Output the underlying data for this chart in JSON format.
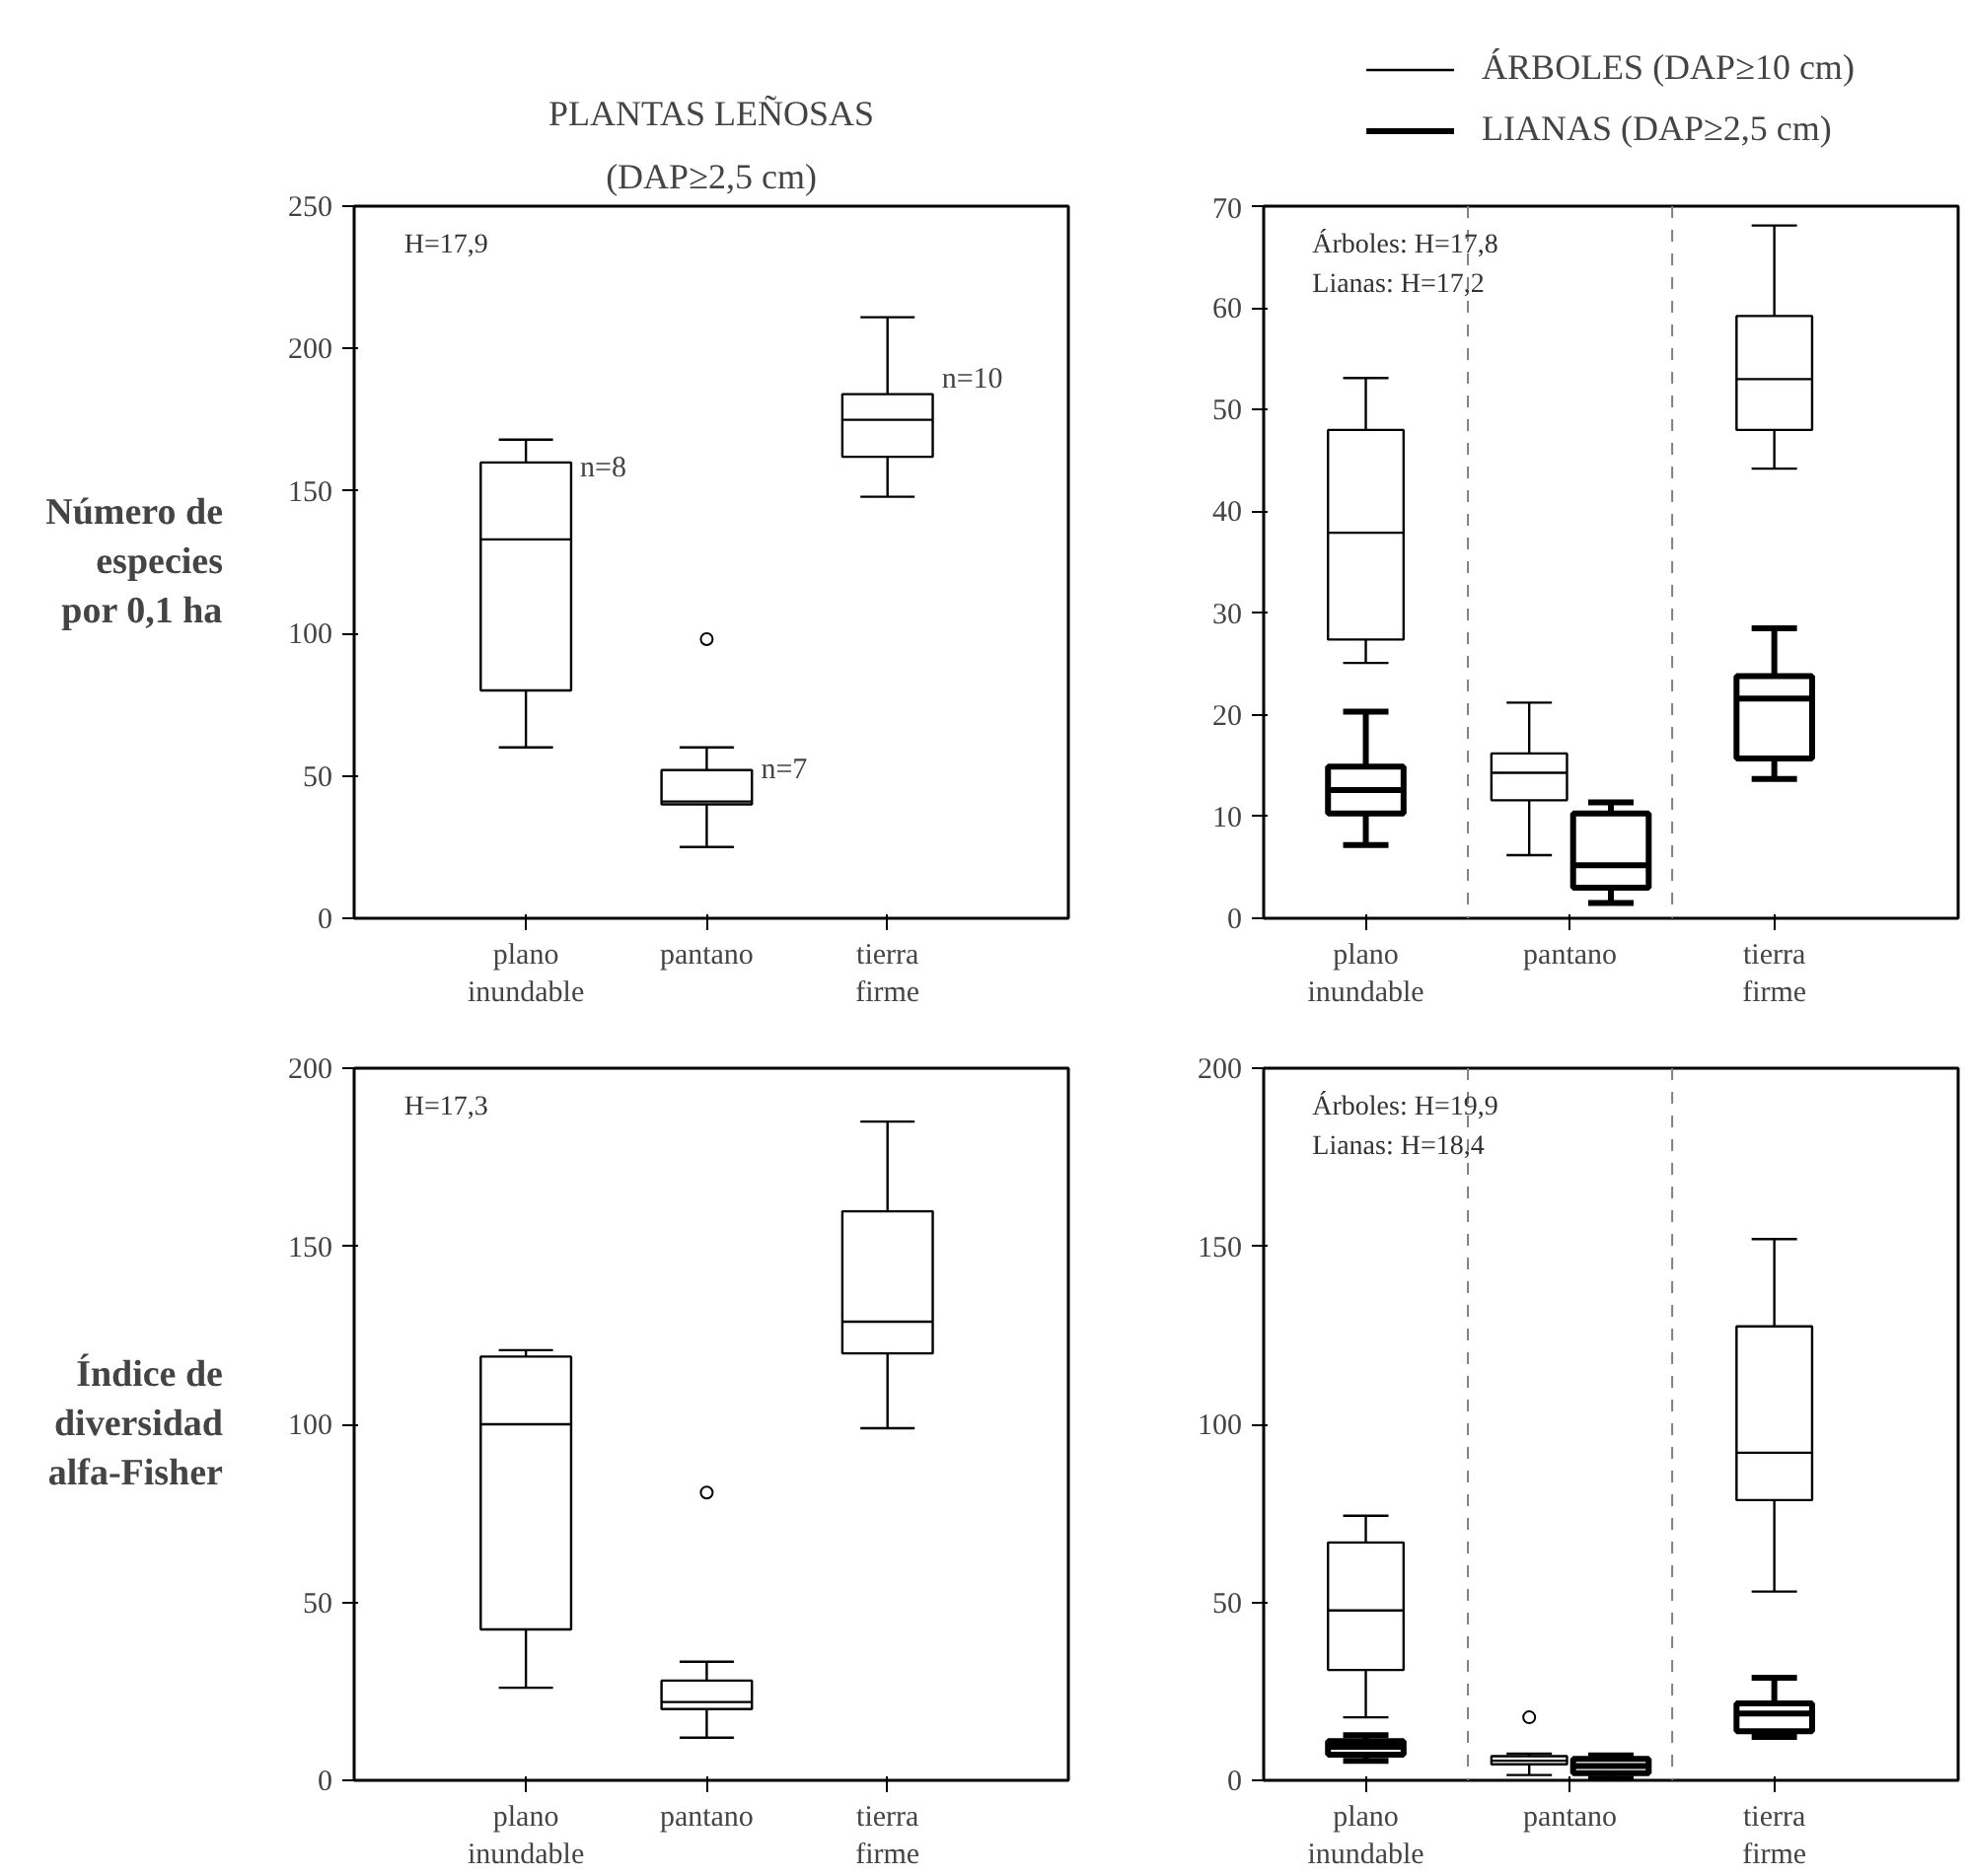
{
  "chart_data": [
    {
      "type": "box",
      "title": "PLANTAS LEÑOSAS",
      "subtitle": "(DAP≥2,5 cm)",
      "ylabel": "Número de especies por 0,1 ha",
      "categories": [
        "plano inundable",
        "pantano",
        "tierra firme"
      ],
      "ylim": [
        0,
        250
      ],
      "yticks": [
        0,
        50,
        100,
        150,
        200,
        250
      ],
      "series": [
        {
          "color": "#000000",
          "boxes": [
            {
              "low": 60,
              "q1": 80,
              "median": 133,
              "q3": 160,
              "high": 168
            },
            {
              "low": 25,
              "q1": 40,
              "median": 41,
              "q3": 52,
              "high": 60,
              "outliers": [
                98
              ]
            },
            {
              "low": 148,
              "q1": 162,
              "median": 175,
              "q3": 184,
              "high": 211
            }
          ]
        }
      ],
      "annotations": [
        "H=17,9",
        {
          "text": "n=8",
          "x": "plano inundable",
          "y": 158
        },
        {
          "text": "n=7",
          "x": "pantano",
          "y": 52
        },
        {
          "text": "n=10",
          "x": "tierra firme",
          "y": 189
        }
      ]
    },
    {
      "type": "box",
      "categories": [
        "plano inundable",
        "pantano",
        "tierra firme"
      ],
      "ylim": [
        0,
        70
      ],
      "yticks": [
        0,
        10,
        20,
        30,
        40,
        50,
        60,
        70
      ],
      "legend": "top",
      "series": [
        {
          "name": "ÁRBOLES (DAP≥10 cm)",
          "color": "#000000",
          "boxes": [
            {
              "low": 25.1,
              "q1": 27.4,
              "median": 37.9,
              "q3": 48,
              "high": 53.1
            },
            {
              "low": 6.2,
              "q1": 11.6,
              "median": 14.3,
              "q3": 16.2,
              "high": 21.2
            },
            {
              "low": 44.2,
              "q1": 48,
              "median": 53,
              "q3": 59.2,
              "high": 68.1
            }
          ]
        },
        {
          "name": "LIANAS (DAP≥2,5 cm)",
          "color": "#000000",
          "boxes": [
            {
              "low": 7.2,
              "q1": 10.3,
              "median": 12.6,
              "q3": 14.9,
              "high": 20.3
            },
            {
              "low": 1.5,
              "q1": 3,
              "median": 5.2,
              "q3": 10.3,
              "high": 11.4
            },
            {
              "low": 13.7,
              "q1": 15.7,
              "median": 21.6,
              "q3": 23.8,
              "high": 28.5
            }
          ]
        }
      ],
      "annotations": [
        "Árboles: H=17,8",
        "Lianas: H=17,2"
      ]
    },
    {
      "type": "box",
      "ylabel": "Índice de diversidad alfa-Fisher",
      "categories": [
        "plano inundable",
        "pantano",
        "tierra firme"
      ],
      "ylim": [
        0,
        200
      ],
      "yticks": [
        0,
        50,
        100,
        150,
        200
      ],
      "series": [
        {
          "color": "#000000",
          "boxes": [
            {
              "low": 26,
              "q1": 42.4,
              "median": 100,
              "q3": 119,
              "high": 120.8
            },
            {
              "low": 12,
              "q1": 20,
              "median": 22,
              "q3": 28,
              "high": 33.3,
              "outliers": [
                80.8
              ]
            },
            {
              "low": 98.9,
              "q1": 119.9,
              "median": 128.8,
              "q3": 159.8,
              "high": 185
            }
          ]
        }
      ],
      "annotations": [
        "H=17,3"
      ]
    },
    {
      "type": "box",
      "categories": [
        "plano inundable",
        "pantano",
        "tierra firme"
      ],
      "ylim": [
        0,
        200
      ],
      "yticks": [
        0,
        50,
        100,
        150,
        200
      ],
      "series": [
        {
          "color": "#000000",
          "boxes": [
            {
              "low": 17.7,
              "q1": 31,
              "median": 47.7,
              "q3": 66.8,
              "high": 74.3
            },
            {
              "low": 1.5,
              "q1": 4.5,
              "median": 5.5,
              "q3": 6.8,
              "high": 7.5,
              "outliers": [
                17.7
              ]
            },
            {
              "low": 53,
              "q1": 78.7,
              "median": 92,
              "q3": 127.5,
              "high": 152
            }
          ]
        },
        {
          "color": "#000000",
          "boxes": [
            {
              "low": 5.5,
              "q1": 7.2,
              "median": 9.4,
              "q3": 11,
              "high": 12.7
            },
            {
              "low": 0.5,
              "q1": 2,
              "median": 4,
              "q3": 6,
              "high": 7
            },
            {
              "low": 12.2,
              "q1": 13.8,
              "median": 18.8,
              "q3": 21.6,
              "high": 28.8
            }
          ]
        }
      ],
      "annotations": [
        "Árboles: H=19,9",
        "Lianas: H=18,4"
      ]
    }
  ]
}
